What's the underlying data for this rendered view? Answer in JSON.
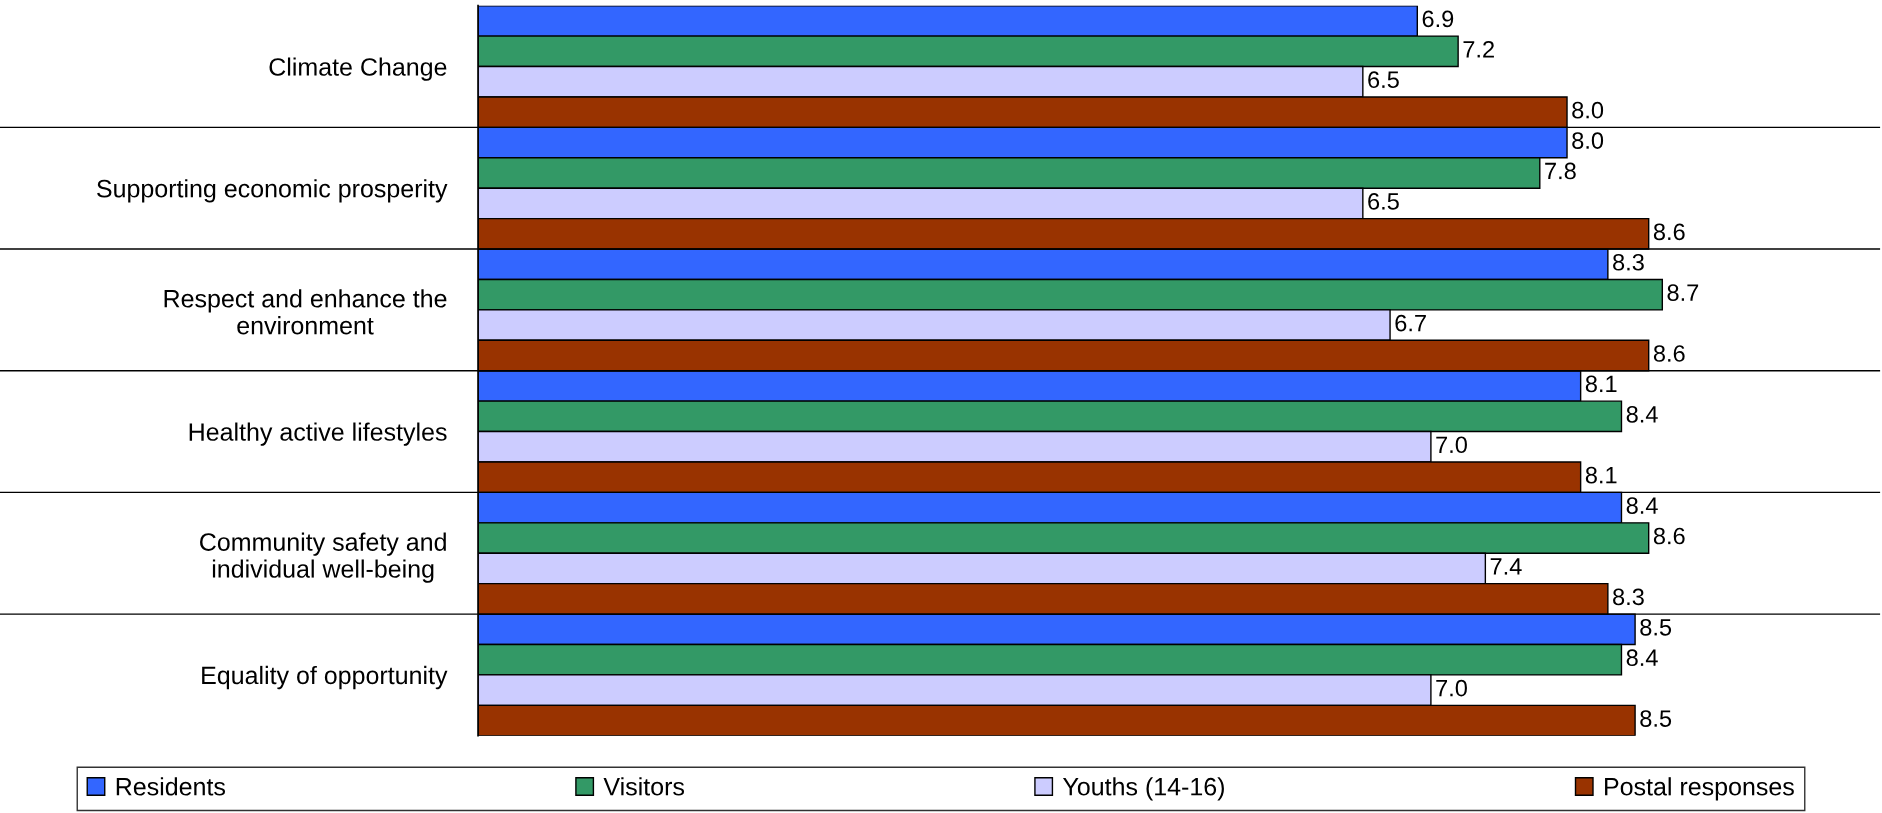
{
  "chart_data": {
    "type": "bar",
    "orientation": "horizontal",
    "categories": [
      "Climate Change",
      "Supporting economic prosperity",
      "Respect and enhance the\nenvironment",
      "Healthy active lifestyles",
      "Community safety and\nindividual well-being",
      "Equality of opportunity"
    ],
    "series": [
      {
        "name": "Residents",
        "color": "#3366ff",
        "values": [
          6.9,
          8.0,
          8.3,
          8.1,
          8.4,
          8.5
        ],
        "value_labels": [
          "6.9",
          "8.0",
          "8.3",
          "8.1",
          "8.4",
          "8.5"
        ]
      },
      {
        "name": "Visitors",
        "color": "#339966",
        "values": [
          7.2,
          7.8,
          8.7,
          8.4,
          8.6,
          8.4
        ],
        "value_labels": [
          "7.2",
          "7.8",
          "8.7",
          "8.4",
          "8.6",
          "8.4"
        ]
      },
      {
        "name": "Youths (14-16)",
        "color": "#ccccff",
        "values": [
          6.5,
          6.5,
          6.7,
          7.0,
          7.4,
          7.0
        ],
        "value_labels": [
          "6.5",
          "6.5",
          "6.7",
          "7.0",
          "7.4",
          "7.0"
        ]
      },
      {
        "name": "Postal responses",
        "color": "#993300",
        "values": [
          8.0,
          8.6,
          8.6,
          8.1,
          8.3,
          8.5
        ],
        "value_labels": [
          "8.0",
          "8.6",
          "8.6",
          "8.1",
          "8.3",
          "8.5"
        ]
      }
    ],
    "xlim": [
      0,
      10.3
    ],
    "tick_labels": "y",
    "grid": "y",
    "legend": "bottom"
  }
}
